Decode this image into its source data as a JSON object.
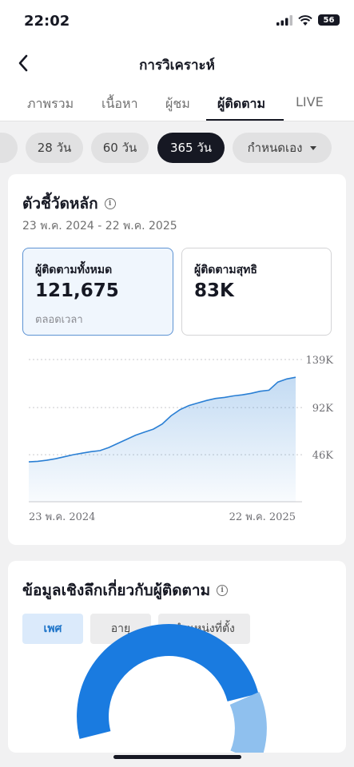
{
  "status_bar": {
    "time": "22:02",
    "battery": "56"
  },
  "nav": {
    "title": "การวิเคราะห์",
    "back_icon": "chevron-left-icon"
  },
  "tabs": [
    {
      "label": "ภาพรวม",
      "active": false
    },
    {
      "label": "เนื้อหา",
      "active": false
    },
    {
      "label": "ผู้ชม",
      "active": false
    },
    {
      "label": "ผู้ติดตาม",
      "active": true
    },
    {
      "label": "LIVE",
      "active": false
    }
  ],
  "ranges": [
    {
      "label": "28 วัน",
      "active": false
    },
    {
      "label": "60 วัน",
      "active": false
    },
    {
      "label": "365 วัน",
      "active": true
    },
    {
      "label": "กำหนดเอง",
      "active": false
    }
  ],
  "key_metrics": {
    "title": "ตัวชี้วัดหลัก",
    "date_range": "23 พ.ค. 2024 - 22 พ.ค. 2025",
    "metrics": [
      {
        "label": "ผู้ติดตามทั้งหมด",
        "value": "121,675",
        "sub": "ตลอดเวลา",
        "selected": true
      },
      {
        "label": "ผู้ติดตามสุทธิ",
        "value": "83K",
        "selected": false
      }
    ]
  },
  "chart_data": {
    "type": "area",
    "x_start_label": "23 พ.ค. 2024",
    "x_end_label": "22 พ.ค. 2025",
    "y_ticks": [
      "139K",
      "92K",
      "46K"
    ],
    "y_tick_values": [
      139000,
      92000,
      46000
    ],
    "ylim": [
      0,
      139000
    ],
    "grid": true,
    "color": "#2a7fd4",
    "values": [
      39000,
      39500,
      40500,
      42000,
      44000,
      46000,
      47500,
      49000,
      50000,
      53000,
      57000,
      61000,
      65000,
      68000,
      71000,
      76000,
      84000,
      90000,
      94000,
      96500,
      99000,
      101000,
      102000,
      103500,
      104500,
      106000,
      108000,
      109000,
      117000,
      120000,
      121675
    ]
  },
  "insights": {
    "title": "ข้อมูลเชิงลึกเกี่ยวกับผู้ติดตาม",
    "pills": [
      {
        "label": "เพศ",
        "active": true
      },
      {
        "label": "อายุ",
        "active": false
      },
      {
        "label": "ตำแหน่งที่ตั้ง",
        "active": false
      }
    ],
    "donut_colors": [
      "#1a7be0",
      "#8fc0ee"
    ]
  }
}
